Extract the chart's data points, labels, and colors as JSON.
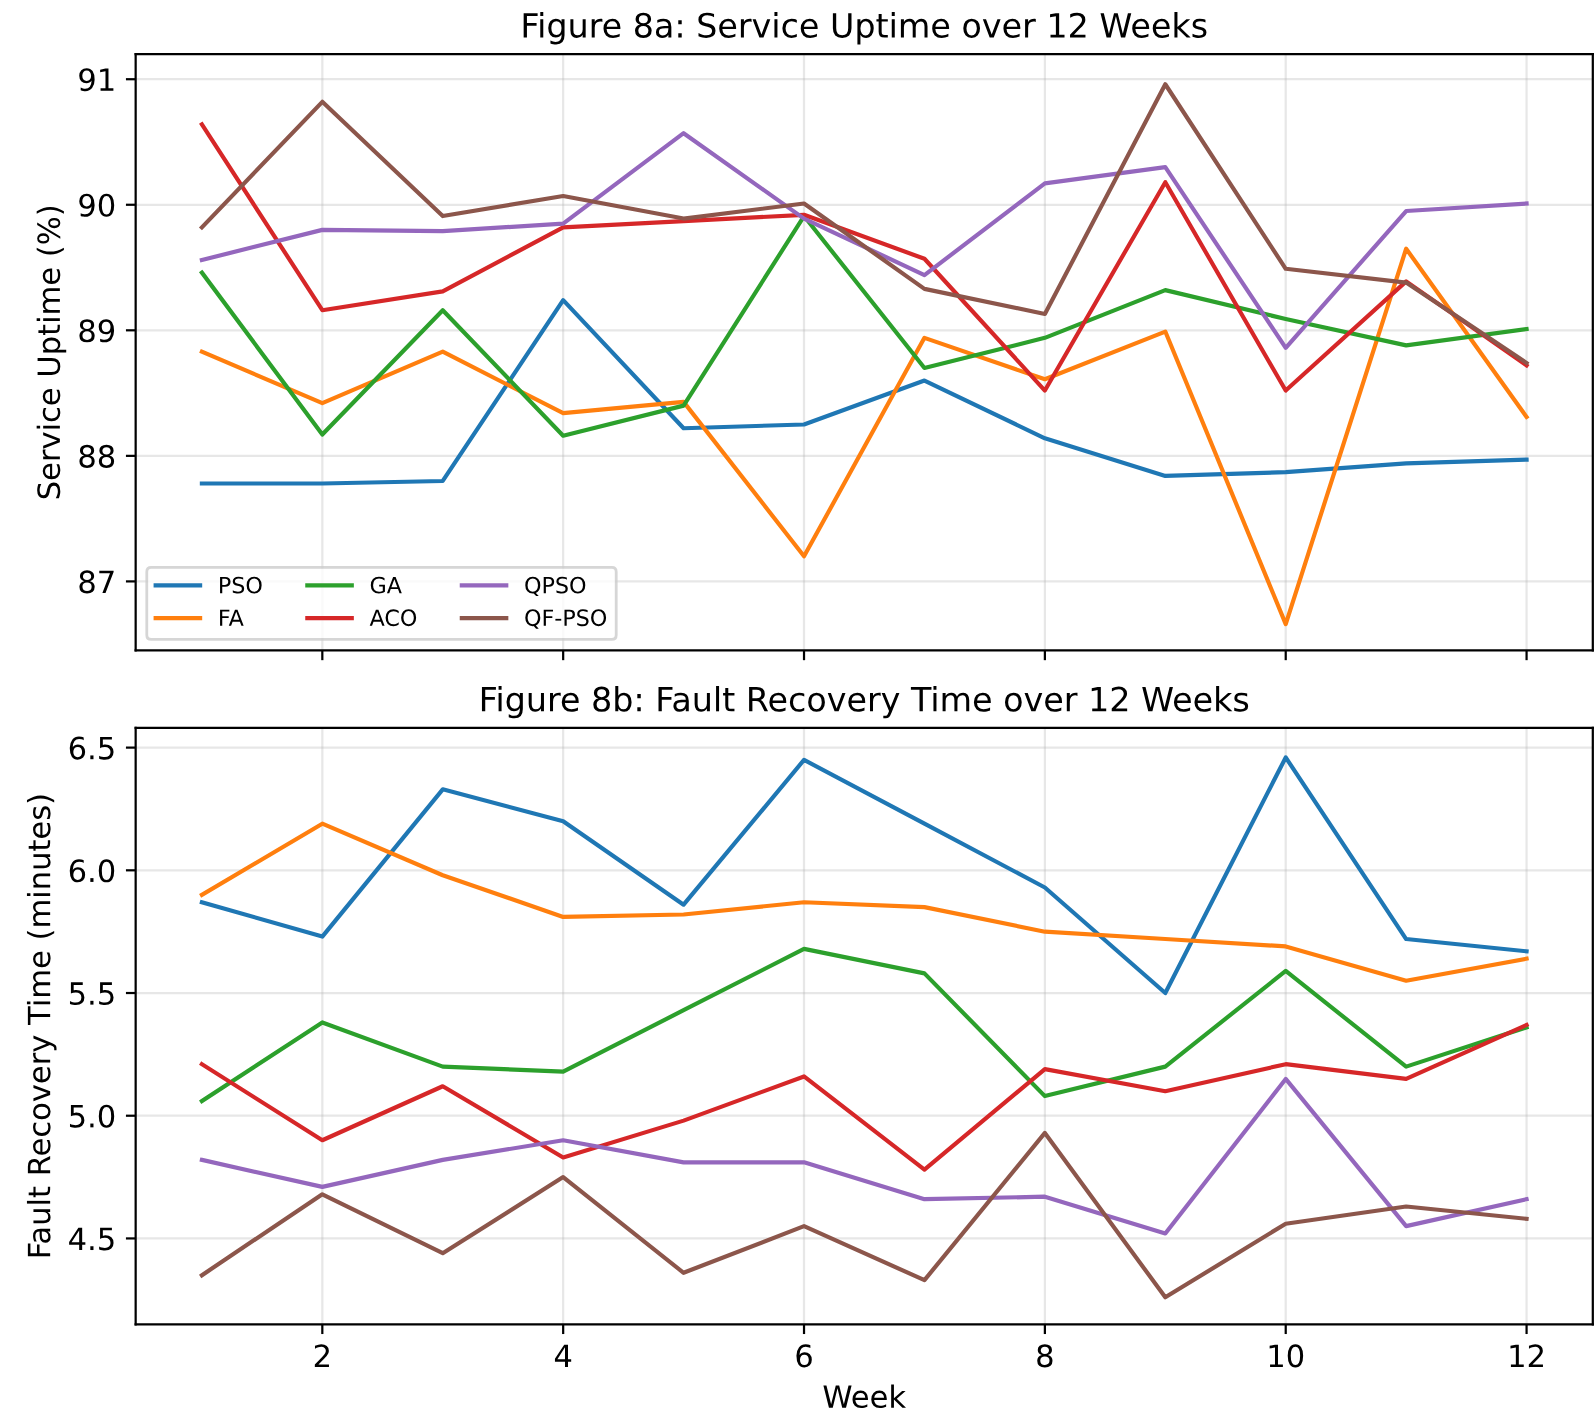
{
  "chart_data": [
    {
      "type": "line",
      "title": "Figure 8a: Service Uptime over 12 Weeks",
      "ylabel": "Service Uptime (%)",
      "x": [
        1,
        2,
        3,
        4,
        5,
        6,
        7,
        8,
        9,
        10,
        11,
        12
      ],
      "series": [
        {
          "name": "PSO",
          "color": "#1f77b4",
          "values": [
            87.78,
            87.78,
            87.8,
            89.24,
            88.22,
            88.25,
            88.6,
            88.14,
            87.84,
            87.87,
            87.94,
            87.97
          ]
        },
        {
          "name": "FA",
          "color": "#ff7f0e",
          "values": [
            88.83,
            88.42,
            88.83,
            88.34,
            88.43,
            87.2,
            88.94,
            88.61,
            88.99,
            86.66,
            89.65,
            88.31
          ]
        },
        {
          "name": "GA",
          "color": "#2ca02c",
          "values": [
            89.46,
            88.17,
            89.16,
            88.16,
            88.4,
            89.91,
            88.7,
            88.94,
            89.32,
            89.09,
            88.88,
            89.01
          ]
        },
        {
          "name": "ACO",
          "color": "#d62728",
          "values": [
            90.64,
            89.16,
            89.31,
            89.82,
            89.87,
            89.92,
            89.57,
            88.52,
            90.18,
            88.52,
            89.39,
            88.72
          ]
        },
        {
          "name": "QPSO",
          "color": "#9467bd",
          "values": [
            89.56,
            89.8,
            89.79,
            89.85,
            90.57,
            89.89,
            89.44,
            90.17,
            90.3,
            88.86,
            89.95,
            90.01
          ]
        },
        {
          "name": "QF-PSO",
          "color": "#8c564b",
          "values": [
            89.82,
            90.82,
            89.91,
            90.07,
            89.89,
            90.01,
            89.33,
            89.13,
            90.96,
            89.49,
            89.38,
            88.74
          ]
        }
      ],
      "xlim": [
        0.45,
        12.55
      ],
      "xticks": [
        2,
        4,
        6,
        8,
        10,
        12
      ],
      "ylim": [
        86.45,
        91.2
      ],
      "yticks": [
        87,
        88,
        89,
        90,
        91
      ],
      "tick_labels": "y",
      "grid": true,
      "legend": "bottom left"
    },
    {
      "type": "line",
      "title": "Figure 8b: Fault Recovery Time over 12 Weeks",
      "xlabel": "Week",
      "ylabel": "Fault Recovery Time (minutes)",
      "x": [
        1,
        2,
        3,
        4,
        5,
        6,
        7,
        8,
        9,
        10,
        11,
        12
      ],
      "series": [
        {
          "color": "#1f77b4",
          "values": [
            5.87,
            5.73,
            6.33,
            6.2,
            5.86,
            6.45,
            6.19,
            5.93,
            5.5,
            6.46,
            5.72,
            5.67
          ]
        },
        {
          "color": "#ff7f0e",
          "values": [
            5.9,
            6.19,
            5.98,
            5.81,
            5.82,
            5.87,
            5.85,
            5.75,
            5.72,
            5.69,
            5.55,
            5.64
          ]
        },
        {
          "color": "#2ca02c",
          "values": [
            5.06,
            5.38,
            5.2,
            5.18,
            5.43,
            5.68,
            5.58,
            5.08,
            5.2,
            5.59,
            5.2,
            5.36
          ]
        },
        {
          "color": "#d62728",
          "values": [
            5.21,
            4.9,
            5.12,
            4.83,
            4.98,
            5.16,
            4.78,
            5.19,
            5.1,
            5.21,
            5.15,
            5.37
          ]
        },
        {
          "color": "#9467bd",
          "values": [
            4.82,
            4.71,
            4.82,
            4.9,
            4.81,
            4.81,
            4.66,
            4.67,
            4.52,
            5.15,
            4.55,
            4.66
          ]
        },
        {
          "color": "#8c564b",
          "values": [
            4.35,
            4.68,
            4.44,
            4.75,
            4.36,
            4.55,
            4.33,
            4.93,
            4.26,
            4.56,
            4.63,
            4.58
          ]
        }
      ],
      "xlim": [
        0.45,
        12.55
      ],
      "xticks": [
        2,
        4,
        6,
        8,
        10,
        12
      ],
      "ylim": [
        4.15,
        6.58
      ],
      "yticks": [
        4.5,
        {
          "value": 5,
          "label": "5.0"
        },
        5.5,
        {
          "value": 6,
          "label": "6.0"
        },
        6.5
      ],
      "grid": true
    }
  ]
}
